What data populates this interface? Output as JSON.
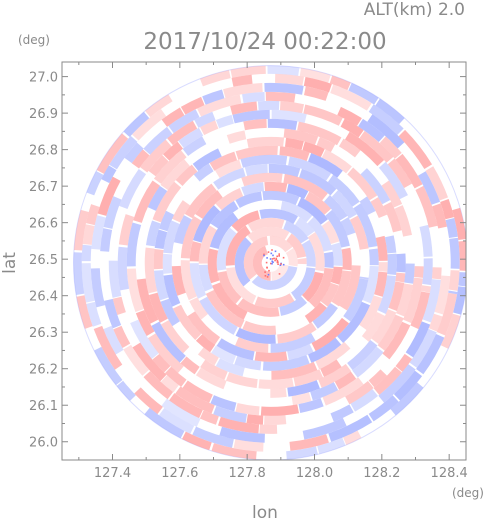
{
  "chart_data": {
    "type": "heatmap",
    "title": "2017/10/24 00:22:00",
    "subtitle": "ALT(km) 2.0",
    "xlabel": "lon",
    "ylabel": "lat",
    "x_unit": "(deg)",
    "y_unit": "(deg)",
    "xlim": [
      127.25,
      128.45
    ],
    "ylim": [
      25.95,
      27.04
    ],
    "x_ticks": [
      127.4,
      127.6,
      127.8,
      128.0,
      128.2,
      128.4
    ],
    "x_tick_labels": [
      "127.4",
      "127.6",
      "127.8",
      "128.0",
      "128.2",
      "128.4"
    ],
    "y_ticks": [
      26.0,
      26.1,
      26.2,
      26.3,
      26.4,
      26.5,
      26.6,
      26.7,
      26.8,
      26.9,
      27.0
    ],
    "y_tick_labels": [
      "26.0",
      "26.1",
      "26.2",
      "26.3",
      "26.4",
      "26.5",
      "26.6",
      "26.7",
      "26.8",
      "26.9",
      "27.0"
    ],
    "disk_center": [
      127.87,
      26.49
    ],
    "disk_radius_lat": 0.54,
    "colors": {
      "positive": "#ff9a9a",
      "negative": "#9aa8ff",
      "neutral": "#ffffff",
      "frame": "#8a8a8a"
    },
    "grid": false,
    "legend": "none"
  }
}
